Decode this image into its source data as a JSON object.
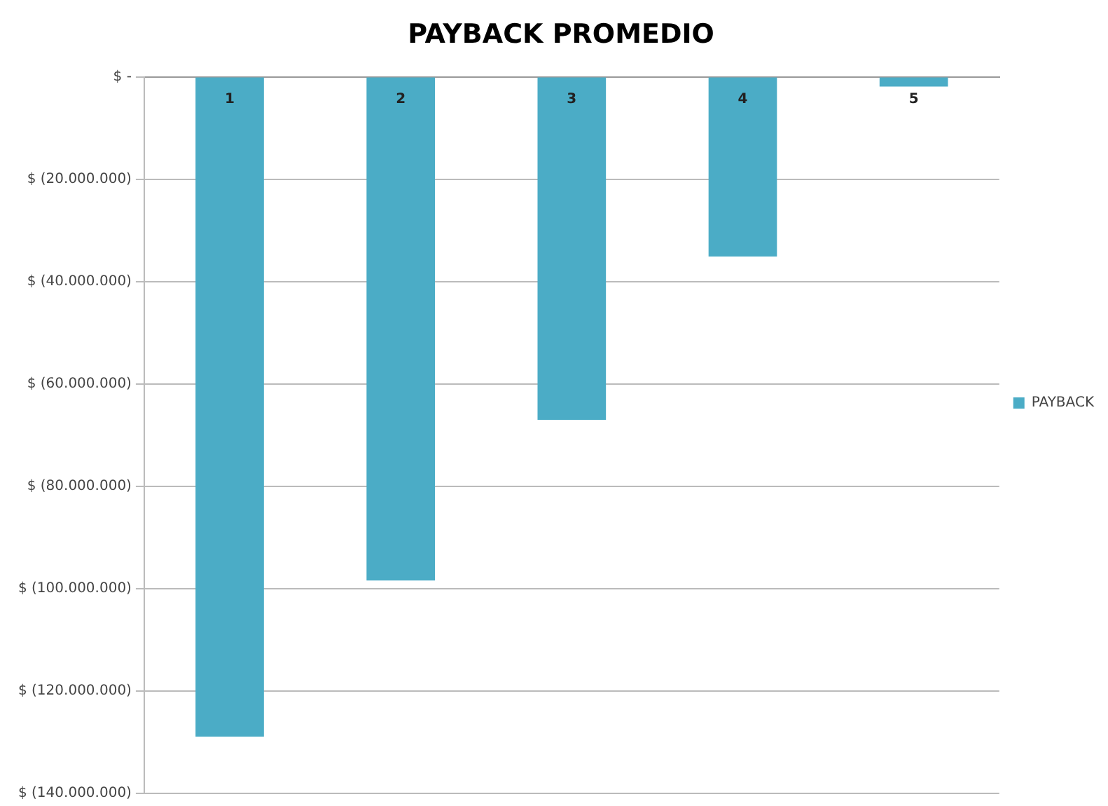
{
  "chart_data": {
    "type": "bar",
    "title": "PAYBACK PROMEDIO",
    "categories": [
      "1",
      "2",
      "3",
      "4",
      "5"
    ],
    "series": [
      {
        "name": "PAYBACK",
        "color": "#4bacc6",
        "values": [
          -128900000,
          -98400000,
          -67000000,
          -35100000,
          -1900000
        ]
      }
    ],
    "ylim": [
      -140000000,
      0
    ],
    "yticks": [
      {
        "value": 0,
        "label": "$ -"
      },
      {
        "value": -20000000,
        "label": "$ (20.000.000)"
      },
      {
        "value": -40000000,
        "label": "$ (40.000.000)"
      },
      {
        "value": -60000000,
        "label": "$ (60.000.000)"
      },
      {
        "value": -80000000,
        "label": "$ (80.000.000)"
      },
      {
        "value": -100000000,
        "label": "$ (100.000.000)"
      },
      {
        "value": -120000000,
        "label": "$ (120.000.000)"
      },
      {
        "value": -140000000,
        "label": "$ (140.000.000)"
      }
    ],
    "grid": "y",
    "legend": "right"
  }
}
